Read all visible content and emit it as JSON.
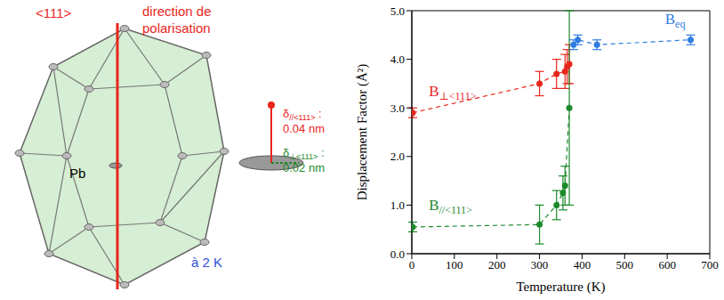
{
  "diagram": {
    "axis_label": "<111>",
    "polarization_label": "direction de polarisation",
    "atom": "Pb",
    "temperature": "à 2 K",
    "displacements": [
      {
        "symbol": "δ",
        "subscript": "//<111>",
        "separator": ":",
        "value": "0.04 nm",
        "color": "#e8251c"
      },
      {
        "symbol": "δ",
        "subscript": "⊥<111>",
        "separator": ":",
        "value": "0.02 nm",
        "color": "#1b8a2a"
      }
    ]
  },
  "chart_data": {
    "type": "scatter",
    "x_label": "Temperature (K)",
    "y_label": "Displacement Factor (Å²)",
    "xlim": [
      0,
      700
    ],
    "xticks": [
      0,
      100,
      200,
      300,
      400,
      500,
      600,
      700
    ],
    "ylim": [
      0,
      5
    ],
    "yticks": [
      {
        "value": 0,
        "label": "0.0"
      },
      {
        "value": 1,
        "label": "1.0"
      },
      {
        "value": 2,
        "label": "2.0"
      },
      {
        "value": 3,
        "label": "3.0"
      },
      {
        "value": 4,
        "label": "4.0"
      },
      {
        "value": 5,
        "label": "5.0"
      }
    ],
    "marker": "circle",
    "line_style": "dashed",
    "series": [
      {
        "name": "B⊥<111>",
        "color": "#e8251c",
        "x": [
          2,
          300,
          340,
          360,
          365,
          370
        ],
        "values": [
          2.9,
          3.5,
          3.7,
          3.75,
          3.85,
          3.9
        ],
        "errors": [
          0.1,
          0.25,
          0.3,
          0.35,
          0.35,
          0.4
        ]
      },
      {
        "name": "B//<111>",
        "color": "#1b8a2a",
        "x": [
          2,
          300,
          340,
          355,
          360,
          370
        ],
        "values": [
          0.55,
          0.6,
          1.0,
          1.25,
          1.4,
          3.0
        ],
        "errors": [
          0.1,
          0.4,
          0.3,
          0.35,
          0.4,
          2.0
        ]
      },
      {
        "name": "Beq",
        "color": "#2f7de1",
        "x": [
          380,
          390,
          435,
          655
        ],
        "values": [
          4.3,
          4.4,
          4.3,
          4.4
        ],
        "errors": [
          0.1,
          0.1,
          0.1,
          0.1
        ]
      }
    ]
  }
}
